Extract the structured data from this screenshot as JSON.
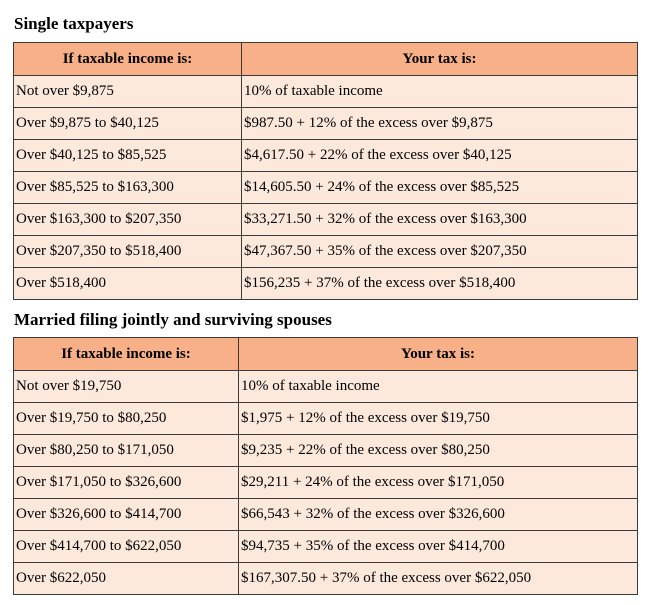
{
  "sections": [
    {
      "title": "Single taxpayers",
      "headers": [
        "If taxable income is:",
        "Your tax is:"
      ],
      "rows": [
        [
          "Not over $9,875",
          "10% of taxable income"
        ],
        [
          "Over $9,875 to $40,125",
          "$987.50 + 12% of the excess over $9,875"
        ],
        [
          "Over $40,125 to $85,525",
          "$4,617.50 + 22% of the excess over $40,125"
        ],
        [
          "Over $85,525 to $163,300",
          "$14,605.50 + 24% of the excess over $85,525"
        ],
        [
          "Over $163,300 to $207,350",
          "$33,271.50 + 32% of the excess over $163,300"
        ],
        [
          "Over $207,350 to $518,400",
          "$47,367.50 + 35% of the excess over $207,350"
        ],
        [
          "Over $518,400",
          "$156,235 + 37% of the excess over $518,400"
        ]
      ]
    },
    {
      "title": "Married filing jointly and surviving spouses",
      "headers": [
        "If taxable income is:",
        "Your tax is:"
      ],
      "rows": [
        [
          "Not over $19,750",
          "10% of taxable income"
        ],
        [
          "Over $19,750 to $80,250",
          "$1,975 + 12% of the excess over $19,750"
        ],
        [
          "Over $80,250 to $171,050",
          "$9,235 + 22% of the excess over $80,250"
        ],
        [
          "Over $171,050 to $326,600",
          "$29,211 + 24% of the excess over $171,050"
        ],
        [
          "Over $326,600 to $414,700",
          "$66,543 + 32% of the excess over $326,600"
        ],
        [
          "Over $414,700 to $622,050",
          "$94,735 + 35% of the excess over $414,700"
        ],
        [
          "Over $622,050",
          "$167,307.50 + 37% of the excess over $622,050"
        ]
      ]
    }
  ],
  "colors": {
    "header_bg": "#f7b088",
    "cell_bg": "#fde8dc",
    "border": "#3a3a3a"
  }
}
